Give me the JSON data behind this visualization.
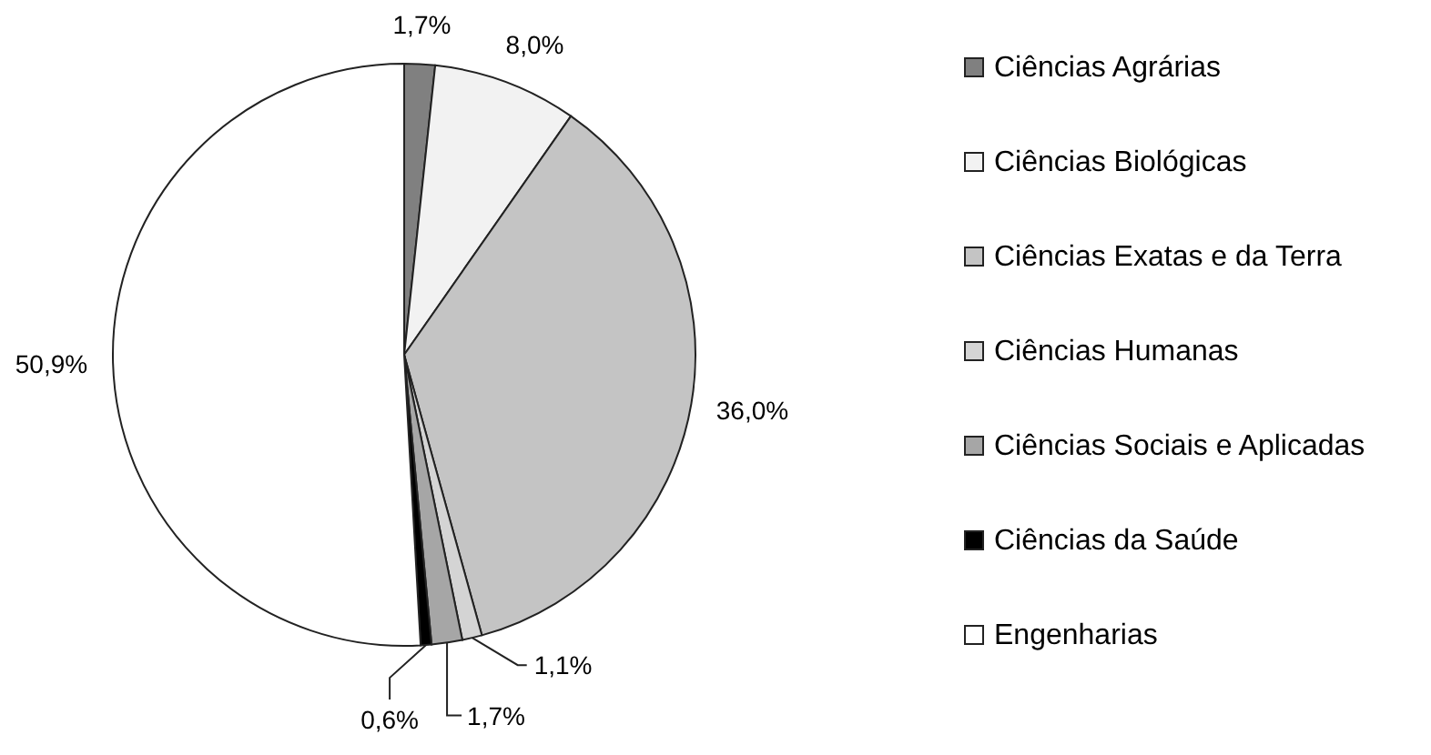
{
  "chart_data": {
    "type": "pie",
    "categories": [
      "Ciências Agrárias",
      "Ciências Biológicas",
      "Ciências Exatas e da Terra",
      "Ciências Humanas",
      "Ciências Sociais e Aplicadas",
      "Ciências da Saúde",
      "Engenharias"
    ],
    "values": [
      1.7,
      8.0,
      36.0,
      1.1,
      1.7,
      0.6,
      50.9
    ],
    "value_labels": [
      "1,7%",
      "8,0%",
      "36,0%",
      "1,1%",
      "1,7%",
      "0,6%",
      "50,9%"
    ],
    "colors": [
      "#808080",
      "#f2f2f2",
      "#c4c4c4",
      "#d4d4d4",
      "#a6a6a6",
      "#000000",
      "#ffffff"
    ],
    "legend": "right"
  }
}
